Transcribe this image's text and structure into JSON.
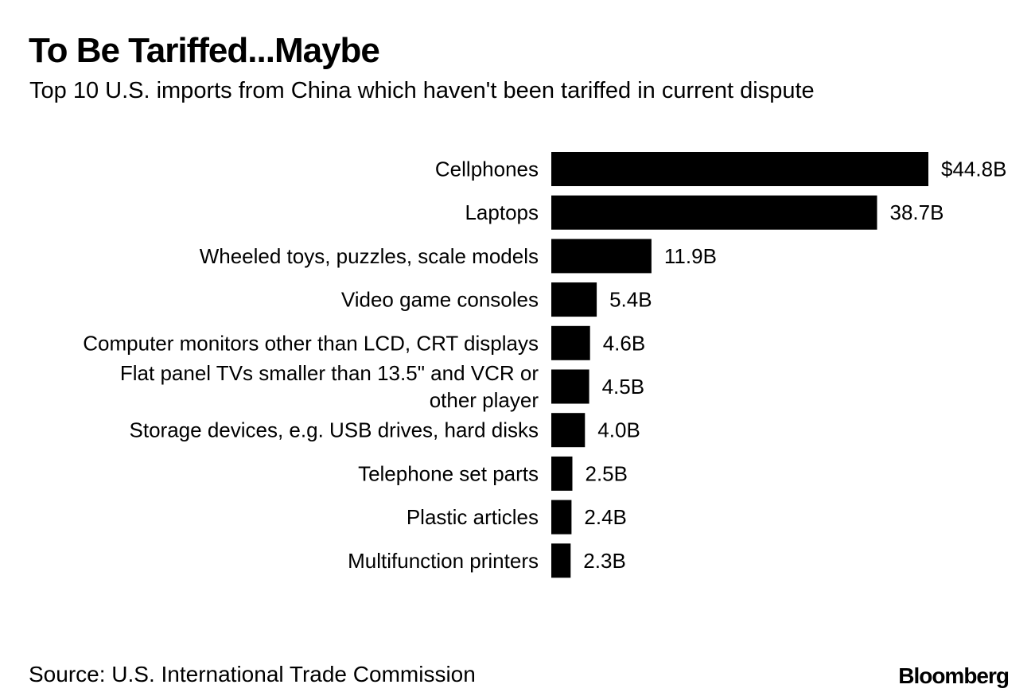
{
  "chart_data": {
    "type": "bar",
    "orientation": "horizontal",
    "title": "To Be Tariffed...Maybe",
    "subtitle": "Top 10 U.S. imports from China which haven't been tariffed in current dispute",
    "categories": [
      "Cellphones",
      "Laptops",
      "Wheeled toys, puzzles, scale models",
      "Video game consoles",
      "Computer monitors other than LCD, CRT displays",
      "Flat panel TVs smaller than 13.5\" and VCR or other player",
      "Storage devices, e.g. USB drives, hard disks",
      "Telephone set parts",
      "Plastic articles",
      "Multifunction printers"
    ],
    "category_lines": [
      [
        "Cellphones"
      ],
      [
        "Laptops"
      ],
      [
        "Wheeled toys, puzzles, scale models"
      ],
      [
        "Video game consoles"
      ],
      [
        "Computer monitors other than LCD, CRT displays"
      ],
      [
        "Flat panel TVs smaller than 13.5\" and VCR or",
        "other player"
      ],
      [
        "Storage devices, e.g. USB drives, hard disks"
      ],
      [
        "Telephone set parts"
      ],
      [
        "Plastic articles"
      ],
      [
        "Multifunction printers"
      ]
    ],
    "values": [
      44.8,
      38.7,
      11.9,
      5.4,
      4.6,
      4.5,
      4.0,
      2.5,
      2.4,
      2.3
    ],
    "value_labels": [
      "$44.8B",
      "38.7B",
      "11.9B",
      "5.4B",
      "4.6B",
      "4.5B",
      "4.0B",
      "2.5B",
      "2.4B",
      "2.3B"
    ],
    "unit": "billion USD",
    "xlim": [
      0,
      44.8
    ],
    "bar_color": "#000000",
    "grid": false,
    "legend": "none"
  },
  "footer": {
    "source": "Source: U.S. International Trade Commission",
    "brand": "Bloomberg"
  }
}
